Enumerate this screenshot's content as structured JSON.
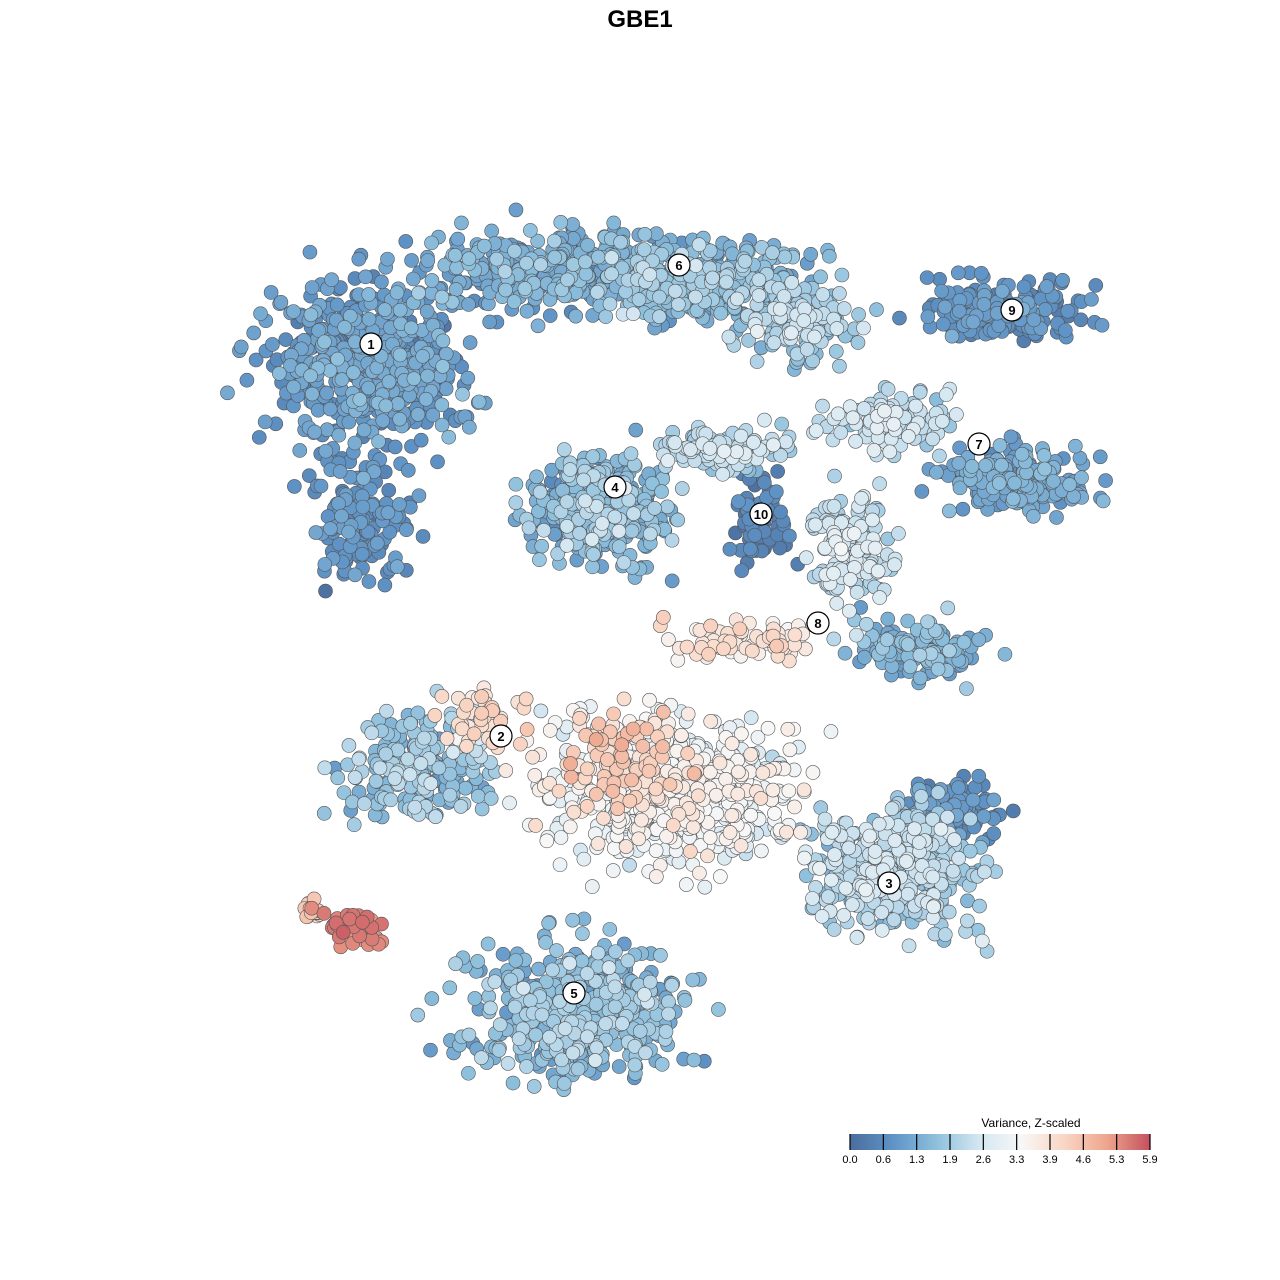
{
  "chart_data": {
    "type": "scatter",
    "title": "GBE1",
    "xlabel": "",
    "ylabel": "",
    "xlim": [
      -50,
      50
    ],
    "ylim": [
      -50,
      50
    ],
    "grid": false,
    "legend": {
      "title": "Variance, Z-scaled",
      "placement": "bottom-right",
      "ticks": [
        "0.0",
        "0.6",
        "1.3",
        "1.9",
        "2.6",
        "3.3",
        "3.9",
        "4.6",
        "5.3",
        "5.9"
      ],
      "range": [
        0,
        5.9
      ],
      "colors": [
        "#4a6d9c",
        "#5f93c6",
        "#8dbfdc",
        "#d3e6f1",
        "#f7f7f7",
        "#f9d6c4",
        "#eea58c",
        "#c4505e"
      ]
    },
    "clusters": [
      {
        "label": "1",
        "x": -26.9,
        "y": 29.6
      },
      {
        "label": "2",
        "x": -13.9,
        "y": -9.6
      },
      {
        "label": "3",
        "x": 24.9,
        "y": -24.3
      },
      {
        "label": "4",
        "x": -2.5,
        "y": 15.3
      },
      {
        "label": "5",
        "x": -6.6,
        "y": -35.3
      },
      {
        "label": "6",
        "x": 3.9,
        "y": 37.5
      },
      {
        "label": "7",
        "x": 33.9,
        "y": 19.6
      },
      {
        "label": "8",
        "x": 17.8,
        "y": 1.7
      },
      {
        "label": "9",
        "x": 37.2,
        "y": 33.0
      },
      {
        "label": "10",
        "x": 12.1,
        "y": 12.6
      }
    ],
    "point_groups": [
      {
        "x": -27,
        "y": 28,
        "sx": 8.5,
        "sy": 6.5,
        "n": 600,
        "mean": 1.0,
        "sd": 0.5
      },
      {
        "x": -28,
        "y": 12,
        "sx": 4.5,
        "sy": 5,
        "n": 160,
        "mean": 0.8,
        "sd": 0.4
      },
      {
        "x": -10,
        "y": 37,
        "sx": 9,
        "sy": 3.5,
        "n": 300,
        "mean": 1.3,
        "sd": 0.5
      },
      {
        "x": 6,
        "y": 36,
        "sx": 9,
        "sy": 3.5,
        "n": 400,
        "mean": 1.6,
        "sd": 0.6
      },
      {
        "x": 16,
        "y": 32,
        "sx": 5,
        "sy": 3,
        "n": 150,
        "mean": 2.0,
        "sd": 0.6
      },
      {
        "x": 36,
        "y": 33,
        "sx": 6,
        "sy": 2.5,
        "n": 200,
        "mean": 0.8,
        "sd": 0.4
      },
      {
        "x": 25,
        "y": 22,
        "sx": 5,
        "sy": 2.5,
        "n": 120,
        "mean": 2.3,
        "sd": 0.5
      },
      {
        "x": 38,
        "y": 16,
        "sx": 6,
        "sy": 2.5,
        "n": 220,
        "mean": 1.2,
        "sd": 0.4
      },
      {
        "x": -4,
        "y": 13,
        "sx": 6,
        "sy": 4.5,
        "n": 350,
        "mean": 1.6,
        "sd": 0.7
      },
      {
        "x": 8,
        "y": 19,
        "sx": 6,
        "sy": 2,
        "n": 120,
        "mean": 2.2,
        "sd": 0.6
      },
      {
        "x": 12,
        "y": 12,
        "sx": 2.5,
        "sy": 3.5,
        "n": 80,
        "mean": 0.5,
        "sd": 0.3
      },
      {
        "x": 21,
        "y": 9,
        "sx": 3.5,
        "sy": 5,
        "n": 150,
        "mean": 2.4,
        "sd": 0.5
      },
      {
        "x": 28,
        "y": -1,
        "sx": 5,
        "sy": 2.5,
        "n": 150,
        "mean": 1.4,
        "sd": 0.5
      },
      {
        "x": 10,
        "y": 0,
        "sx": 6,
        "sy": 1.8,
        "n": 80,
        "mean": 3.8,
        "sd": 0.5
      },
      {
        "x": -22,
        "y": -13,
        "sx": 5.5,
        "sy": 4.5,
        "n": 220,
        "mean": 1.8,
        "sd": 0.6
      },
      {
        "x": -16,
        "y": -8,
        "sx": 3,
        "sy": 2.5,
        "n": 50,
        "mean": 4.0,
        "sd": 0.4
      },
      {
        "x": 3,
        "y": -15,
        "sx": 10,
        "sy": 6,
        "n": 700,
        "mean": 3.2,
        "sd": 0.6
      },
      {
        "x": -2,
        "y": -12,
        "sx": 5,
        "sy": 4,
        "n": 80,
        "mean": 4.3,
        "sd": 0.6
      },
      {
        "x": 25,
        "y": -23,
        "sx": 7,
        "sy": 5,
        "n": 450,
        "mean": 2.1,
        "sd": 0.6
      },
      {
        "x": 31,
        "y": -17,
        "sx": 4,
        "sy": 2.5,
        "n": 150,
        "mean": 0.8,
        "sd": 0.4
      },
      {
        "x": -6,
        "y": -37,
        "sx": 8.5,
        "sy": 5.5,
        "n": 500,
        "mean": 1.6,
        "sd": 0.6
      },
      {
        "x": -29,
        "y": -29,
        "sx": 2.5,
        "sy": 1.5,
        "n": 40,
        "mean": 5.4,
        "sd": 0.3
      },
      {
        "x": -33,
        "y": -27,
        "sx": 1,
        "sy": 1,
        "n": 15,
        "mean": 4.4,
        "sd": 0.2
      }
    ]
  }
}
